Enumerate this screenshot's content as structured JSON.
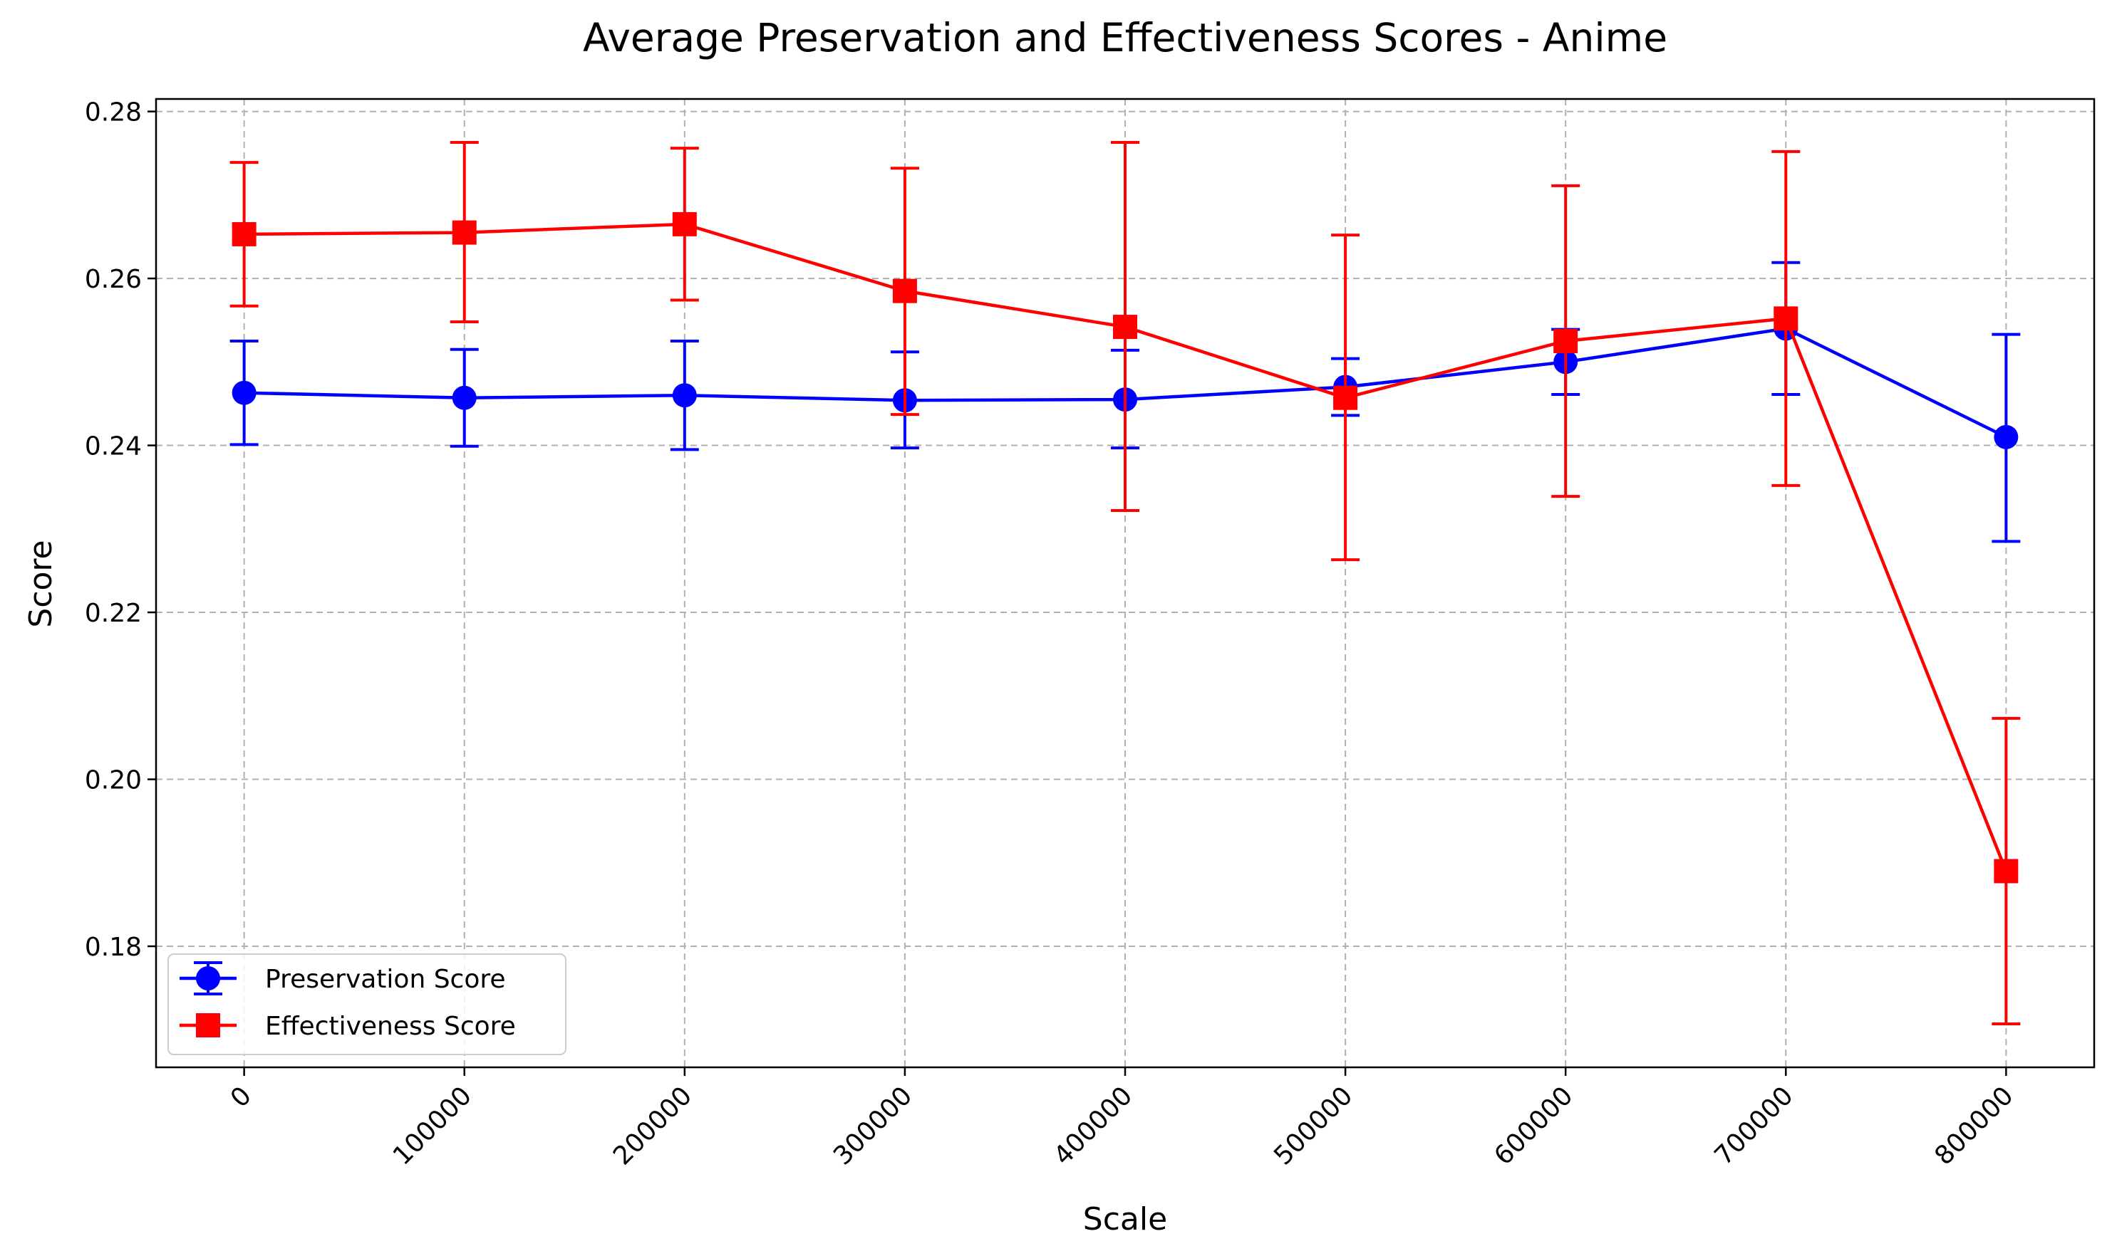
{
  "chart_data": {
    "type": "line",
    "title": "Average Preservation and Effectiveness Scores - Anime",
    "xlabel": "Scale",
    "ylabel": "Score",
    "x": [
      0,
      100000,
      200000,
      300000,
      400000,
      500000,
      600000,
      700000,
      800000
    ],
    "x_tick_labels": [
      "0",
      "100000",
      "200000",
      "300000",
      "400000",
      "500000",
      "600000",
      "700000",
      "800000"
    ],
    "xlim": [
      -40000,
      840000
    ],
    "ylim": [
      0.1655,
      0.2815
    ],
    "y_ticks": [
      0.18,
      0.2,
      0.22,
      0.24,
      0.26,
      0.28
    ],
    "y_tick_labels": [
      "0.18",
      "0.20",
      "0.22",
      "0.24",
      "0.26",
      "0.28"
    ],
    "grid": true,
    "legend_position": "lower-left",
    "series": [
      {
        "name": "Preservation Score",
        "color": "#0000ff",
        "marker": "circle",
        "values": [
          0.2463,
          0.2457,
          0.246,
          0.2454,
          0.2455,
          0.247,
          0.25,
          0.254,
          0.241
        ],
        "err_low": [
          0.2401,
          0.2399,
          0.2395,
          0.2397,
          0.2397,
          0.2436,
          0.2461,
          0.2461,
          0.2285
        ],
        "err_high": [
          0.2525,
          0.2515,
          0.2525,
          0.2512,
          0.2514,
          0.2504,
          0.2539,
          0.2619,
          0.2533
        ]
      },
      {
        "name": "Effectiveness Score",
        "color": "#ff0000",
        "marker": "square",
        "values": [
          0.2653,
          0.2655,
          0.2665,
          0.2585,
          0.2542,
          0.2457,
          0.2525,
          0.2552,
          0.189
        ],
        "err_low": [
          0.2567,
          0.2548,
          0.2574,
          0.2437,
          0.2322,
          0.2263,
          0.2339,
          0.2352,
          0.1707
        ],
        "err_high": [
          0.2739,
          0.2763,
          0.2756,
          0.2732,
          0.2763,
          0.2652,
          0.2711,
          0.2752,
          0.2073
        ]
      }
    ]
  }
}
